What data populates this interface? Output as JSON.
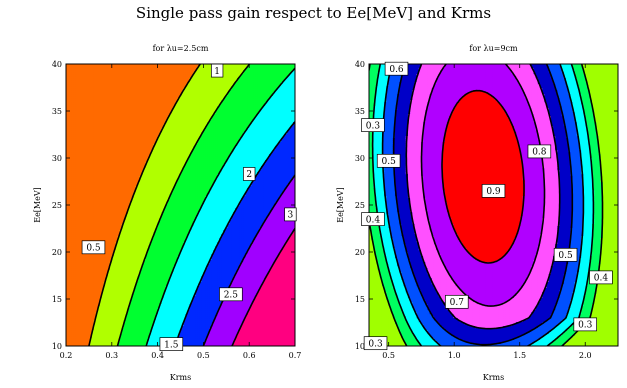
{
  "title": "Single pass gain respect to Ee[MeV] and Krms",
  "chart_data": [
    {
      "type": "contour",
      "subtitle": "for λu=2.5cm",
      "xlabel": "Krms",
      "ylabel": "Ee[MeV]",
      "xlim": [
        0.2,
        0.7
      ],
      "ylim": [
        10,
        40
      ],
      "xticks": [
        "0.2",
        "0.3",
        "0.4",
        "0.5",
        "0.6",
        "0.7"
      ],
      "yticks": [
        "10",
        "15",
        "20",
        "25",
        "30",
        "35",
        "40"
      ],
      "contour_levels": [
        0.5,
        1,
        1.5,
        2,
        2.5,
        3
      ],
      "contour_labels": [
        {
          "text": "0.5",
          "x": 0.26,
          "y": 20.5
        },
        {
          "text": "1",
          "x": 0.53,
          "y": 39.3
        },
        {
          "text": "1.5",
          "x": 0.43,
          "y": 10.2
        },
        {
          "text": "2",
          "x": 0.6,
          "y": 28.3
        },
        {
          "text": "2.5",
          "x": 0.56,
          "y": 15.5
        },
        {
          "text": "3",
          "x": 0.69,
          "y": 24
        }
      ],
      "fill_colors": [
        "#ff6a00",
        "#b0ff00",
        "#00ff30",
        "#00ffff",
        "#0028ff",
        "#a000ff",
        "#ff0080"
      ]
    },
    {
      "type": "contour",
      "subtitle": "for λu=9cm",
      "xlabel": "Krms",
      "ylabel": "Ee[MeV]",
      "xlim": [
        0.35,
        2.25
      ],
      "ylim": [
        10,
        40
      ],
      "xticks": [
        "0.5",
        "1.0",
        "1.5",
        "2.0"
      ],
      "yticks": [
        "10",
        "15",
        "20",
        "25",
        "30",
        "35",
        "40"
      ],
      "contour_levels": [
        0.3,
        0.4,
        0.5,
        0.6,
        0.7,
        0.8,
        0.9
      ],
      "contour_labels": [
        {
          "text": "0.6",
          "x": 0.56,
          "y": 39.5
        },
        {
          "text": "0.3",
          "x": 0.38,
          "y": 33.5
        },
        {
          "text": "0.5",
          "x": 0.5,
          "y": 29.7
        },
        {
          "text": "0.4",
          "x": 0.38,
          "y": 23.5
        },
        {
          "text": "0.8",
          "x": 1.65,
          "y": 30.7
        },
        {
          "text": "0.9",
          "x": 1.3,
          "y": 26.5
        },
        {
          "text": "0.7",
          "x": 1.02,
          "y": 14.7
        },
        {
          "text": "0.5",
          "x": 1.85,
          "y": 19.7
        },
        {
          "text": "0.4",
          "x": 2.12,
          "y": 17.3
        },
        {
          "text": "0.3",
          "x": 2.0,
          "y": 12.3
        },
        {
          "text": "0.3",
          "x": 0.4,
          "y": 10.3
        }
      ],
      "fill_colors": [
        "#a0ff00",
        "#00ff60",
        "#00ffff",
        "#0050ff",
        "#0000c8",
        "#ff50ff",
        "#b000ff",
        "#ff0000"
      ]
    }
  ]
}
